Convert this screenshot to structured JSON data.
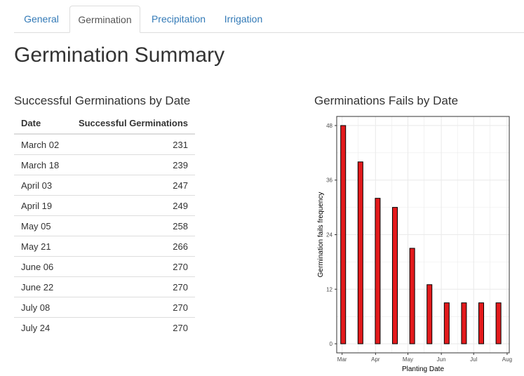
{
  "tabs": [
    {
      "label": "General",
      "active": false
    },
    {
      "label": "Germination",
      "active": true
    },
    {
      "label": "Precipitation",
      "active": false
    },
    {
      "label": "Irrigation",
      "active": false
    }
  ],
  "page_title": "Germination Summary",
  "table_section": {
    "title": "Successful Germinations by Date",
    "columns": [
      "Date",
      "Successful Germinations"
    ],
    "rows": [
      [
        "March 02",
        "231"
      ],
      [
        "March 18",
        "239"
      ],
      [
        "April 03",
        "247"
      ],
      [
        "April 19",
        "249"
      ],
      [
        "May 05",
        "258"
      ],
      [
        "May 21",
        "266"
      ],
      [
        "June 06",
        "270"
      ],
      [
        "June 22",
        "270"
      ],
      [
        "July 08",
        "270"
      ],
      [
        "July 24",
        "270"
      ]
    ]
  },
  "chart_section": {
    "title": "Germinations Fails by Date"
  },
  "chart_data": {
    "type": "bar",
    "xlabel": "Planting Date",
    "ylabel": "Germination fails frequency",
    "x": [
      "2023-03-02",
      "2023-03-18",
      "2023-04-03",
      "2023-04-19",
      "2023-05-05",
      "2023-05-21",
      "2023-06-06",
      "2023-06-22",
      "2023-07-08",
      "2023-07-24"
    ],
    "values": [
      48,
      40,
      32,
      30,
      21,
      13,
      9,
      9,
      9,
      9
    ],
    "x_ticks": [
      "Mar",
      "Apr",
      "May",
      "Jun",
      "Jul",
      "Aug"
    ],
    "y_ticks": [
      0,
      12,
      24,
      36,
      48
    ],
    "ylim": [
      -2,
      50
    ],
    "grid": true,
    "colors": {
      "bar_fill": "#e31a1c",
      "bar_stroke": "#000000",
      "grid": "#ebebeb"
    }
  }
}
